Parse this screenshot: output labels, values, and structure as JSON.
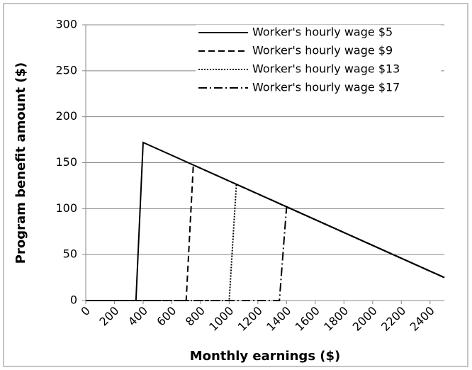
{
  "chart_data": {
    "type": "line",
    "x_label": "Monthly earnings ($)",
    "y_label": "Program benefit amount ($)",
    "xlim": [
      0,
      2500
    ],
    "ylim": [
      0,
      300
    ],
    "xticks": [
      0,
      200,
      400,
      600,
      800,
      1000,
      1200,
      1400,
      1600,
      1800,
      2000,
      2200,
      2400
    ],
    "yticks": [
      0,
      50,
      100,
      150,
      200,
      250,
      300
    ],
    "grid": true,
    "legend": "upper right",
    "series": [
      {
        "name": "Worker's hourly wage $5",
        "color": "#000000",
        "dash": "solid",
        "x": [
          0,
          350,
          400,
          2500
        ],
        "values": [
          0,
          0,
          172,
          25
        ]
      },
      {
        "name": "Worker's hourly wage $9",
        "color": "#000000",
        "dash": "dashed",
        "x": [
          0,
          700,
          750,
          2500
        ],
        "values": [
          0,
          0,
          147.5,
          25
        ]
      },
      {
        "name": "Worker's hourly wage $13",
        "color": "#000000",
        "dash": "dotted",
        "x": [
          0,
          1000,
          1050,
          2500
        ],
        "values": [
          0,
          0,
          126.5,
          25
        ]
      },
      {
        "name": "Worker's hourly wage $17",
        "color": "#000000",
        "dash": "dashdot",
        "x": [
          0,
          1350,
          1400,
          2500
        ],
        "values": [
          0,
          0,
          102,
          25
        ]
      }
    ]
  }
}
